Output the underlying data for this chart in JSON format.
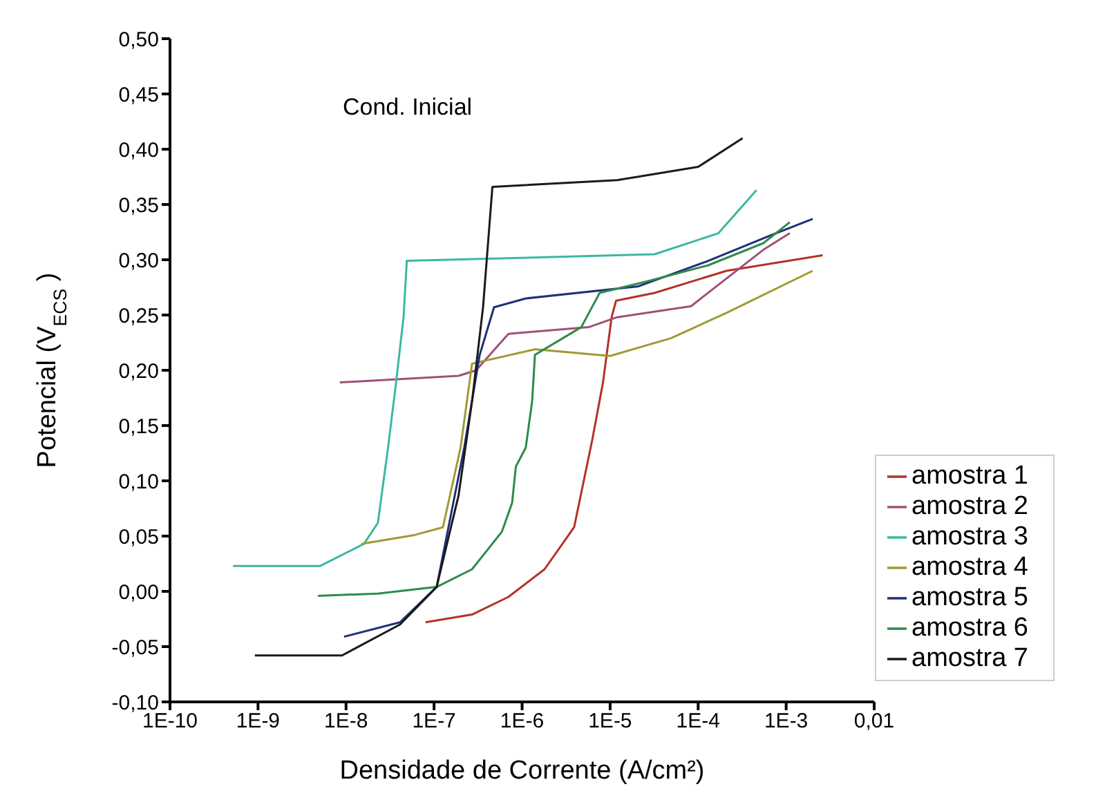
{
  "chart_data": {
    "type": "line",
    "xlabel": "Densidade de Corrente (A/cm²)",
    "ylabel": "Potencial (V$_{ECS}$)",
    "annotations": [
      "Cond. Inicial"
    ],
    "log": "x",
    "legend": "bottom right",
    "marker": "none",
    "line_style": "solid",
    "xlim": [
      1e-10,
      0.01
    ],
    "xticks": [
      {
        "value": 1e-10,
        "label": "1E-10"
      },
      {
        "value": 1e-09,
        "label": "1E-9"
      },
      {
        "value": 1e-08,
        "label": "1E-8"
      },
      {
        "value": 1e-07,
        "label": "1E-7"
      },
      {
        "value": 1e-06,
        "label": "1E-6"
      },
      {
        "value": 1e-05,
        "label": "1E-5"
      },
      {
        "value": 0.0001,
        "label": "1E-4"
      },
      {
        "value": 0.001,
        "label": "1E-3"
      },
      {
        "value": 0.01,
        "label": "0,01"
      }
    ],
    "ylim": [
      -0.1,
      0.5
    ],
    "yticks": [
      {
        "value": -0.1,
        "label": "-0,10"
      },
      {
        "value": -0.05,
        "label": "-0,05"
      },
      {
        "value": 0,
        "label": "0,00"
      },
      {
        "value": 0.05,
        "label": "0,05"
      },
      {
        "value": 0.1,
        "label": "0,10"
      },
      {
        "value": 0.15,
        "label": "0,15"
      },
      {
        "value": 0.2,
        "label": "0,20"
      },
      {
        "value": 0.25,
        "label": "0,25"
      },
      {
        "value": 0.3,
        "label": "0,30"
      },
      {
        "value": 0.35,
        "label": "0,35"
      },
      {
        "value": 0.4,
        "label": "0,40"
      },
      {
        "value": 0.45,
        "label": "0,45"
      },
      {
        "value": 0.5,
        "label": "0,50"
      }
    ],
    "series": [
      {
        "name": "amostra 1",
        "color": "#b5302a",
        "x": [
          8e-08,
          2.7e-07,
          7e-07,
          1.8e-06,
          3.9e-06,
          6.3e-06,
          8.3e-06,
          1.04e-05,
          1.17e-05,
          3.2e-05,
          0.00021,
          0.0026
        ],
        "values": [
          -0.028,
          -0.021,
          -0.005,
          0.02,
          0.058,
          0.138,
          0.189,
          0.248,
          0.263,
          0.27,
          0.29,
          0.304
        ]
      },
      {
        "name": "amostra 2",
        "color": "#a0507a",
        "x": [
          8.5e-09,
          1.9e-07,
          3e-07,
          7e-07,
          5.7e-06,
          1.2e-05,
          8.3e-05,
          0.00055,
          0.0011
        ],
        "values": [
          0.189,
          0.195,
          0.2,
          0.233,
          0.239,
          0.248,
          0.258,
          0.309,
          0.324
        ]
      },
      {
        "name": "amostra 3",
        "color": "#3bb8a0",
        "x": [
          5.2e-10,
          5.1e-09,
          1.6e-08,
          2.3e-08,
          3e-08,
          3.7e-08,
          4.5e-08,
          4.9e-08,
          3.2e-05,
          0.00017,
          0.00046
        ],
        "values": [
          0.023,
          0.023,
          0.043,
          0.062,
          0.13,
          0.189,
          0.248,
          0.299,
          0.305,
          0.324,
          0.363
        ]
      },
      {
        "name": "amostra 4",
        "color": "#a09a30",
        "x": [
          1.5e-08,
          6e-08,
          1.26e-07,
          2e-07,
          2.7e-07,
          1.4e-06,
          1e-05,
          4.9e-05,
          0.00021,
          0.002
        ],
        "values": [
          0.043,
          0.051,
          0.058,
          0.13,
          0.206,
          0.219,
          0.213,
          0.229,
          0.252,
          0.29
        ]
      },
      {
        "name": "amostra 5",
        "color": "#1f2f7a",
        "x": [
          9.5e-09,
          4.1e-08,
          1.07e-07,
          2.2e-07,
          3.3e-07,
          4.8e-07,
          1.1e-06,
          2.1e-05,
          0.00013,
          0.00066,
          0.002
        ],
        "values": [
          -0.041,
          -0.028,
          0.004,
          0.13,
          0.214,
          0.257,
          0.265,
          0.276,
          0.299,
          0.322,
          0.337
        ]
      },
      {
        "name": "amostra 6",
        "color": "#2e8b4a",
        "x": [
          4.8e-09,
          2.3e-08,
          1.07e-07,
          2.7e-07,
          5.9e-07,
          7.7e-07,
          8.5e-07,
          1.1e-06,
          1.3e-06,
          1.4e-06,
          4.7e-06,
          7.6e-06,
          2.5e-05,
          0.00013,
          0.00055,
          0.0011
        ],
        "values": [
          -0.004,
          -0.002,
          0.004,
          0.02,
          0.054,
          0.08,
          0.113,
          0.13,
          0.172,
          0.214,
          0.239,
          0.27,
          0.28,
          0.295,
          0.315,
          0.334
        ]
      },
      {
        "name": "amostra 7",
        "color": "#1a1a1a",
        "x": [
          9.2e-10,
          9e-09,
          4.1e-08,
          1.07e-07,
          1.9e-07,
          2.7e-07,
          3.6e-07,
          4.6e-07,
          1.2e-05,
          0.0001,
          0.00032
        ],
        "values": [
          -0.058,
          -0.058,
          -0.03,
          0.004,
          0.087,
          0.172,
          0.257,
          0.366,
          0.372,
          0.384,
          0.41
        ]
      }
    ]
  }
}
